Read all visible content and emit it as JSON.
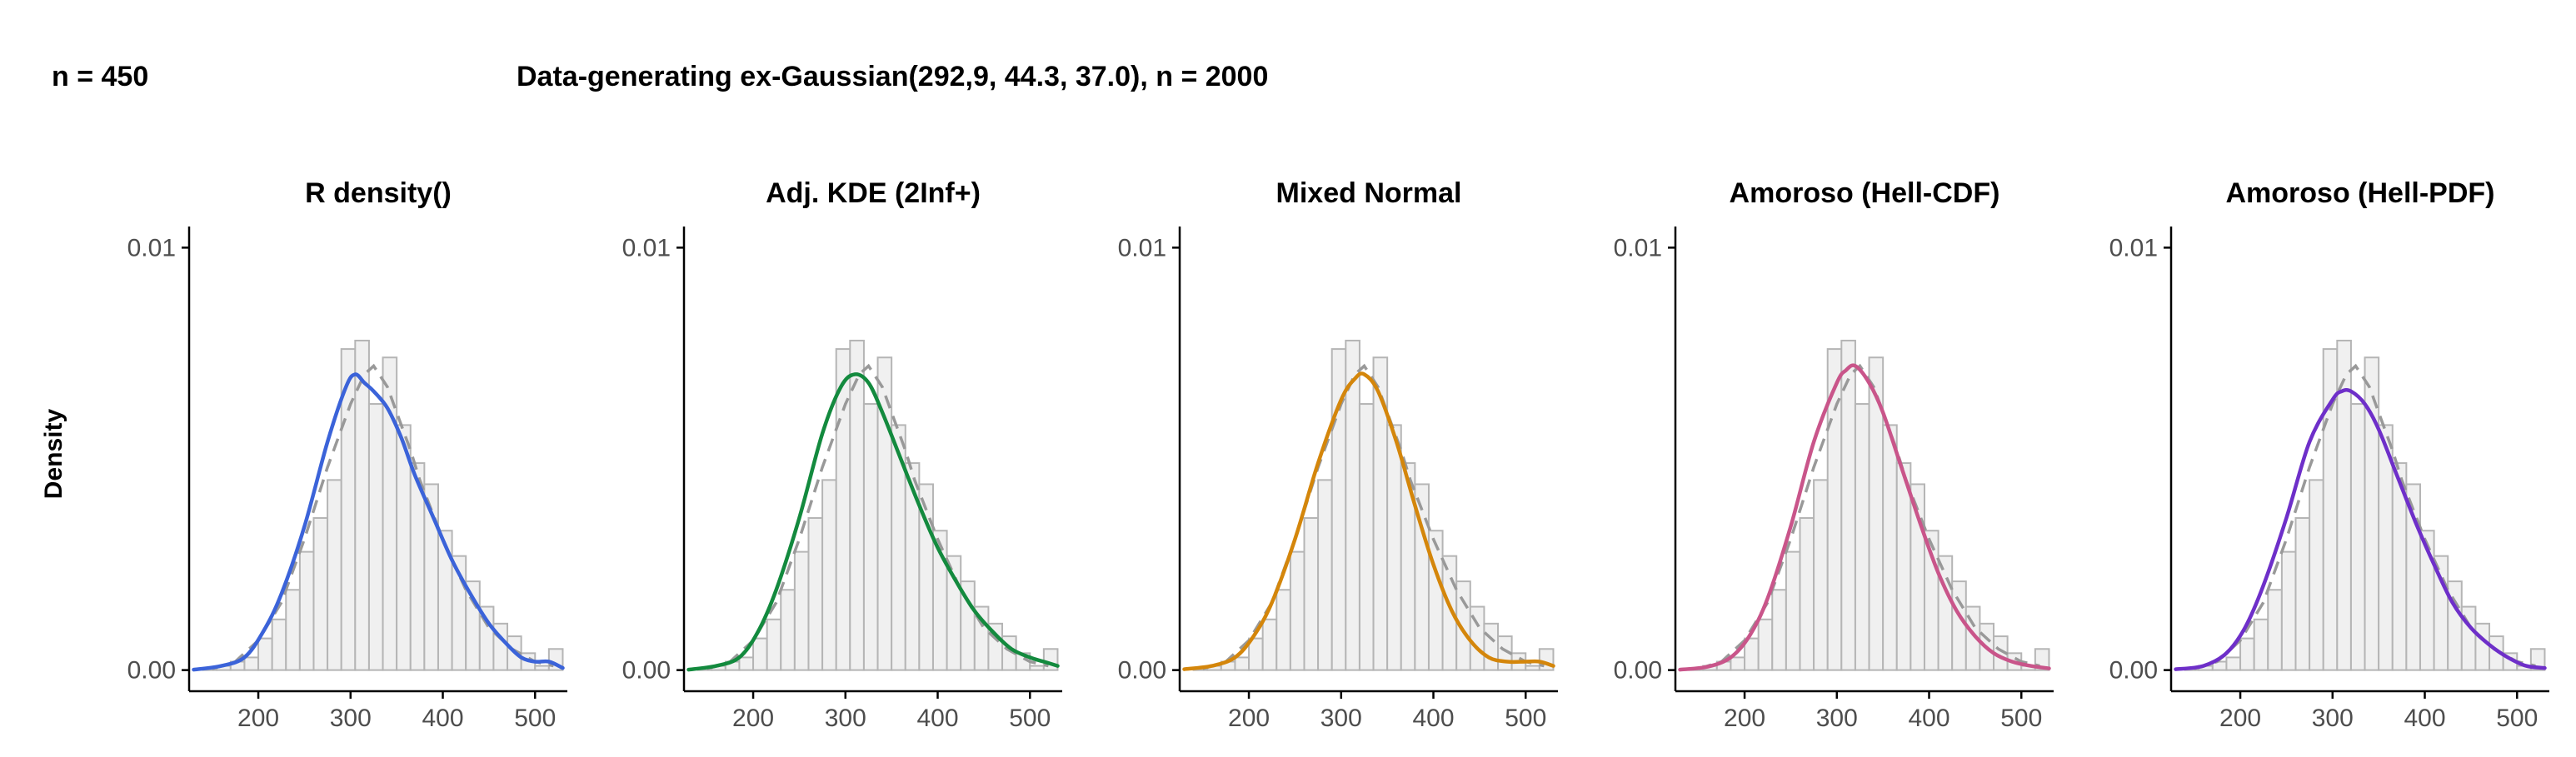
{
  "header": {
    "left": "n = 450",
    "main": "Data-generating ex-Gaussian(292,9, 44.3, 37.0), n = 2000"
  },
  "ylabel": "Density",
  "chart_data": {
    "type": "histogram",
    "xlim": [
      125,
      535
    ],
    "ylim": [
      -0.0005,
      0.0105
    ],
    "x_ticks": [
      200,
      300,
      400,
      500
    ],
    "x_tick_labels": [
      "200",
      "300",
      "400",
      "500"
    ],
    "y_ticks": [
      0,
      0.01
    ],
    "y_tick_labels": [
      "0.00",
      "0.01"
    ],
    "histogram": {
      "bin_width": 15,
      "bins_left": [
        140,
        155,
        170,
        185,
        200,
        215,
        230,
        245,
        260,
        275,
        290,
        305,
        320,
        335,
        350,
        365,
        380,
        395,
        410,
        425,
        440,
        455,
        470,
        485,
        500,
        515
      ],
      "density": [
        5e-05,
        0.0001,
        0.0002,
        0.0003,
        0.00075,
        0.0012,
        0.0019,
        0.0028,
        0.0036,
        0.0045,
        0.0076,
        0.0078,
        0.0063,
        0.0074,
        0.0058,
        0.0049,
        0.0044,
        0.0033,
        0.0027,
        0.0021,
        0.0015,
        0.0011,
        0.0008,
        0.0004,
        0.0001,
        0.0005
      ]
    },
    "truth": {
      "name": "Data-generating ex-Gaussian",
      "x": [
        150,
        175,
        200,
        225,
        250,
        275,
        300,
        315,
        325,
        340,
        350,
        365,
        375,
        400,
        425,
        450,
        475,
        500,
        520
      ],
      "y": [
        3e-05,
        0.0002,
        0.0007,
        0.0016,
        0.0031,
        0.0048,
        0.0063,
        0.007,
        0.0072,
        0.0067,
        0.0061,
        0.0052,
        0.0045,
        0.0031,
        0.0019,
        0.001,
        0.0005,
        0.0002,
        0.0001
      ]
    },
    "panels": [
      {
        "title": "R density()",
        "color": "#3b63d9",
        "x": [
          130,
          160,
          185,
          205,
          225,
          250,
          275,
          295,
          305,
          315,
          325,
          340,
          355,
          370,
          390,
          410,
          430,
          450,
          470,
          485,
          500,
          515,
          530
        ],
        "y": [
          1e-05,
          0.0001,
          0.0003,
          0.0009,
          0.0018,
          0.0034,
          0.0054,
          0.0067,
          0.007,
          0.0068,
          0.0066,
          0.0062,
          0.0055,
          0.0046,
          0.0036,
          0.0026,
          0.0018,
          0.0011,
          0.0006,
          0.0003,
          0.0002,
          0.0002,
          5e-05
        ]
      },
      {
        "title": "Adj. KDE (2Inf+)",
        "color": "#138a3e",
        "x": [
          130,
          160,
          185,
          205,
          225,
          250,
          275,
          295,
          310,
          325,
          340,
          360,
          380,
          400,
          420,
          440,
          460,
          480,
          500,
          515,
          530
        ],
        "y": [
          1e-05,
          0.0001,
          0.0003,
          0.0009,
          0.0019,
          0.0036,
          0.0056,
          0.0067,
          0.007,
          0.0068,
          0.0061,
          0.005,
          0.0039,
          0.0029,
          0.0021,
          0.0014,
          0.0009,
          0.0005,
          0.0003,
          0.0002,
          0.0001
        ]
      },
      {
        "title": "Mixed Normal",
        "color": "#d4860b",
        "x": [
          130,
          160,
          185,
          205,
          225,
          250,
          275,
          300,
          315,
          325,
          340,
          360,
          380,
          400,
          420,
          440,
          460,
          480,
          500,
          515,
          530
        ],
        "y": [
          2e-05,
          0.0001,
          0.0003,
          0.0008,
          0.0016,
          0.0031,
          0.0049,
          0.0064,
          0.0069,
          0.007,
          0.0066,
          0.0054,
          0.0039,
          0.0025,
          0.0014,
          0.0007,
          0.0003,
          0.0002,
          0.0002,
          0.0002,
          0.0001
        ]
      },
      {
        "title": "Amoroso (Hell-CDF)",
        "color": "#c9558a",
        "x": [
          130,
          160,
          185,
          205,
          225,
          250,
          275,
          300,
          310,
          320,
          335,
          350,
          370,
          390,
          410,
          430,
          450,
          470,
          490,
          510,
          530
        ],
        "y": [
          1e-05,
          8e-05,
          0.0003,
          0.0008,
          0.0017,
          0.0034,
          0.0054,
          0.0068,
          0.0071,
          0.0072,
          0.0068,
          0.0061,
          0.0048,
          0.0035,
          0.0023,
          0.0014,
          0.0008,
          0.0004,
          0.0002,
          0.0001,
          4e-05
        ]
      },
      {
        "title": "Amoroso (Hell-PDF)",
        "color": "#6e2fc9",
        "x": [
          130,
          160,
          185,
          205,
          225,
          250,
          275,
          300,
          310,
          320,
          335,
          350,
          370,
          390,
          410,
          430,
          450,
          470,
          490,
          510,
          530
        ],
        "y": [
          2e-05,
          0.0001,
          0.0004,
          0.001,
          0.002,
          0.0036,
          0.0054,
          0.0064,
          0.0066,
          0.0066,
          0.0063,
          0.0057,
          0.0046,
          0.0035,
          0.0025,
          0.0016,
          0.001,
          0.0006,
          0.0003,
          0.0001,
          5e-05
        ]
      }
    ]
  }
}
